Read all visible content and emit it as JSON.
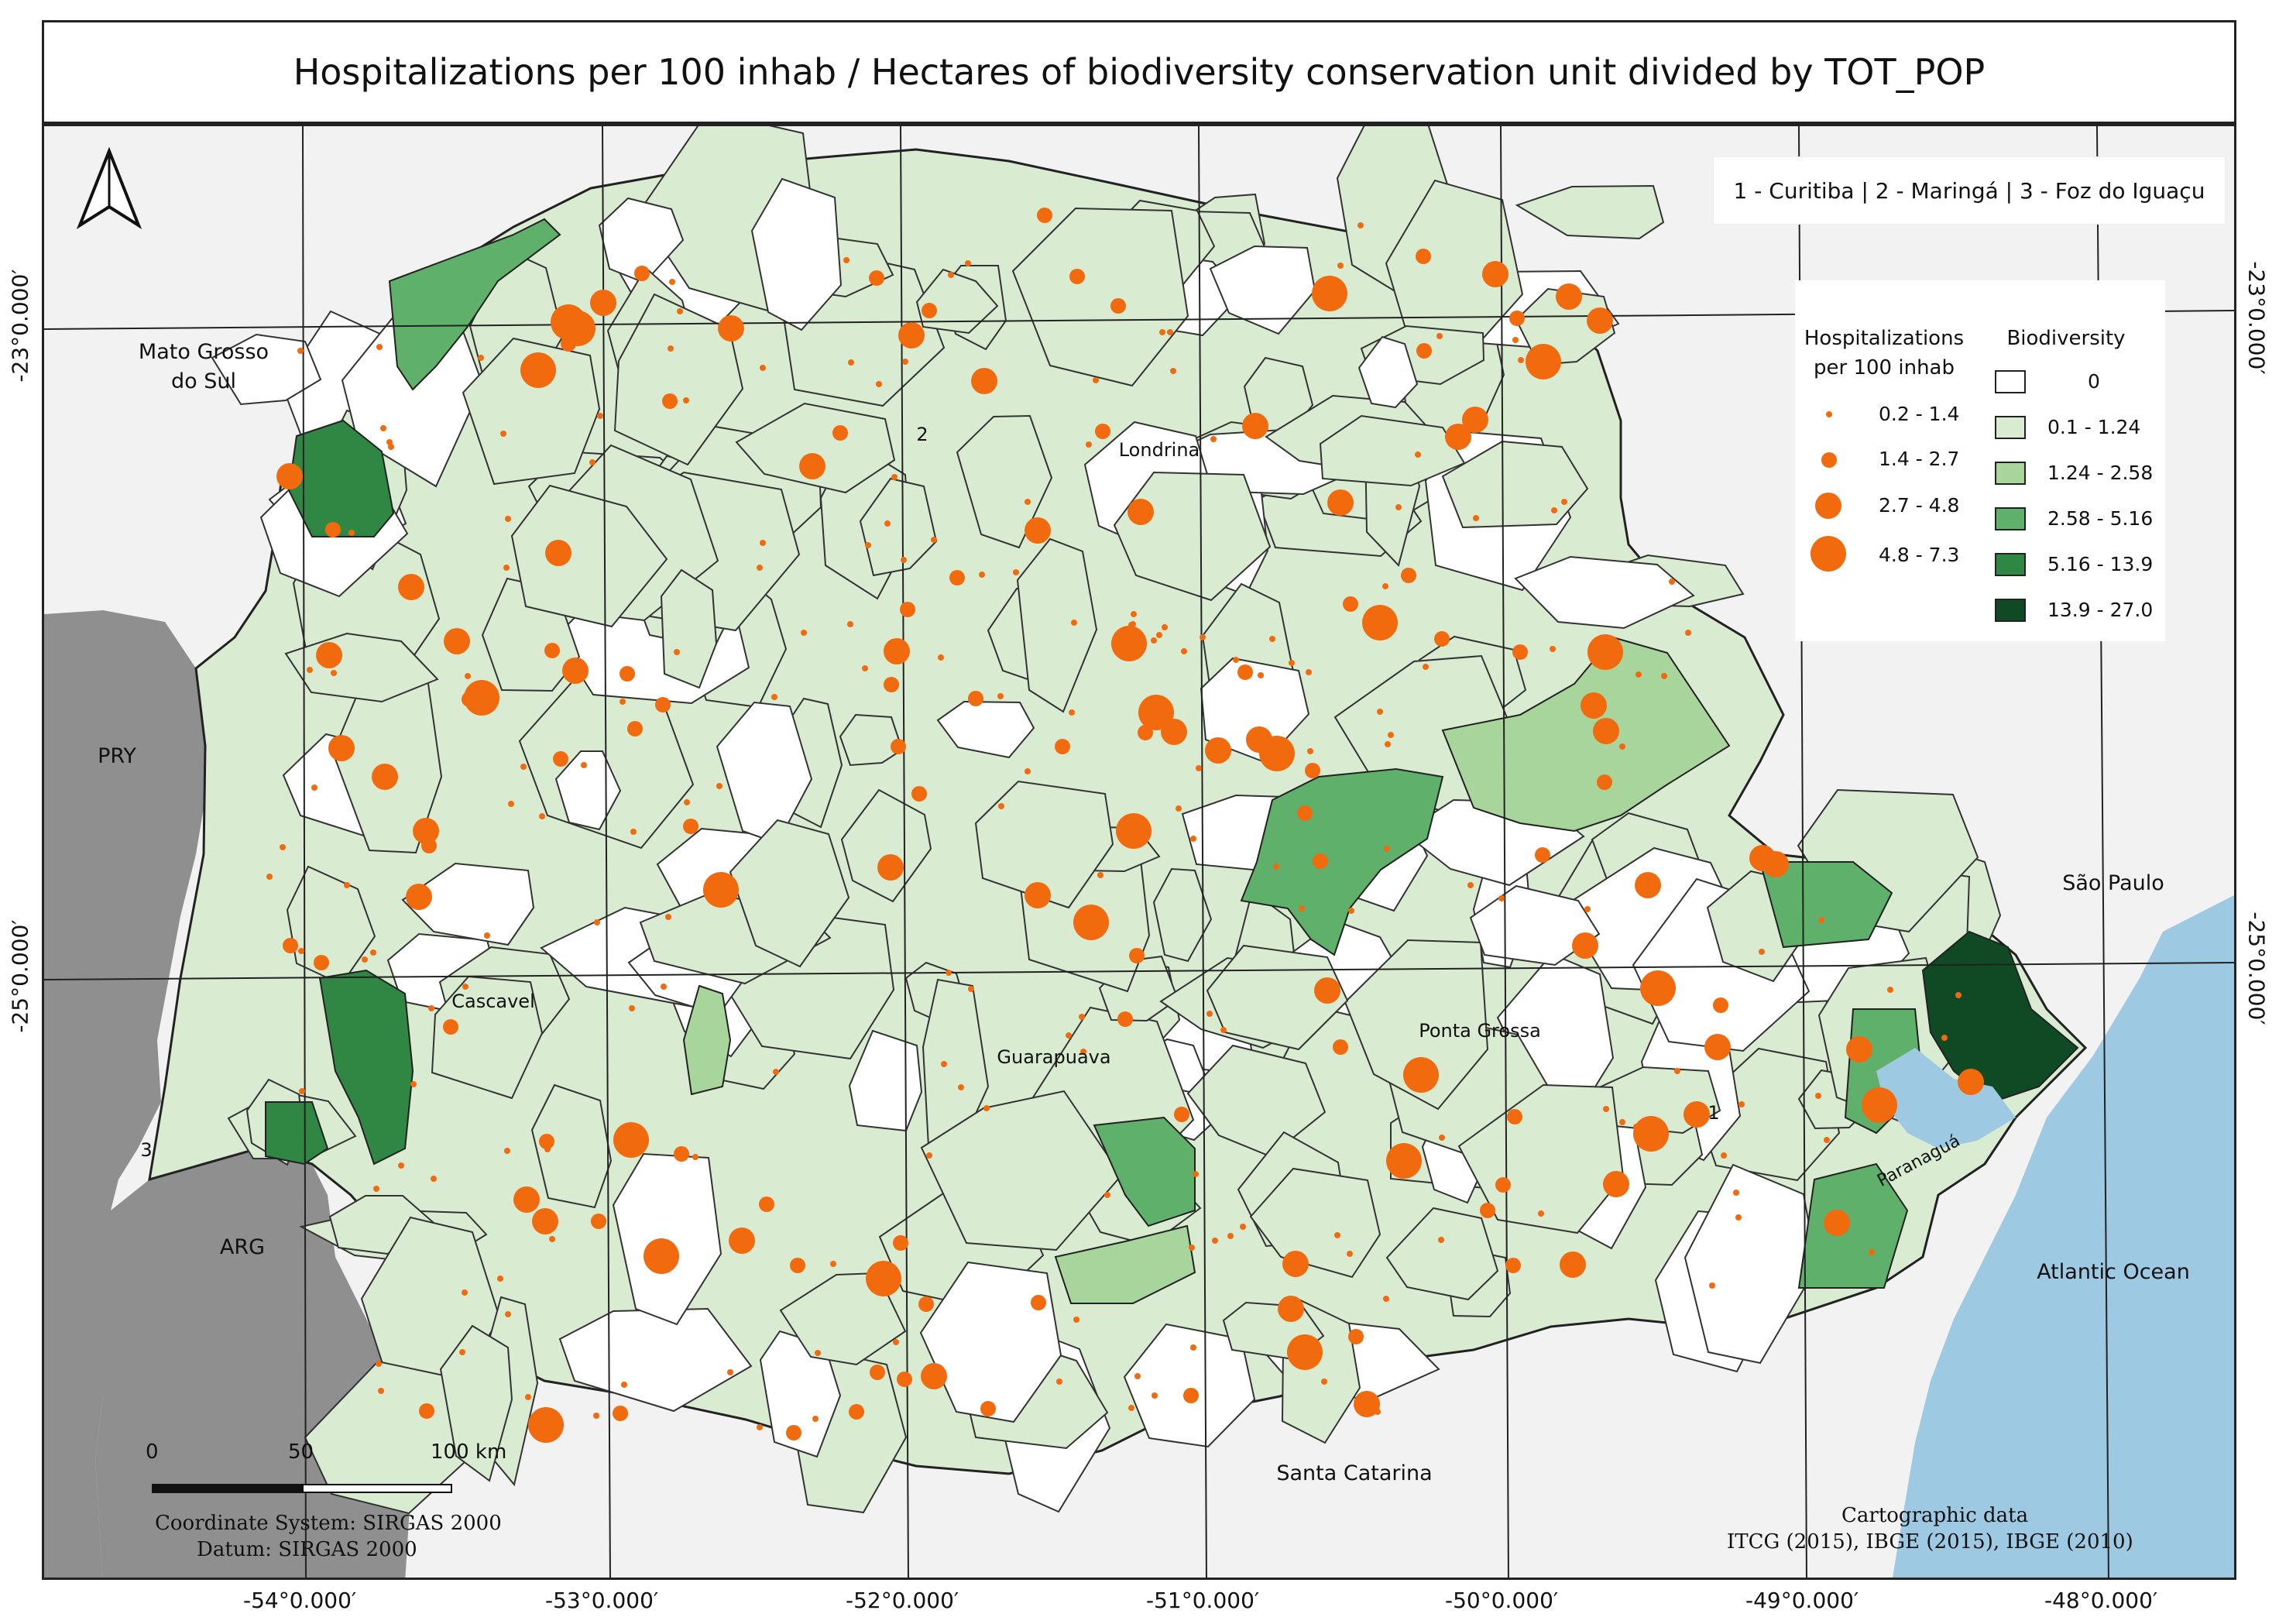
{
  "title": "Hospitalizations per 100 inhab / Hectares of biodiversity conservation unit divided by TOT_POP",
  "city_key": "1 - Curitiba | 2 - Maringá | 3 - Foz do Iguaçu",
  "legend": {
    "hosp_title_line1": "Hospitalizations",
    "hosp_title_line2": "per 100 inhab",
    "hosp_classes": [
      "0.2 - 1.4",
      "1.4 - 2.7",
      "2.7 - 4.8",
      "4.8 - 7.3"
    ],
    "hosp_color": "#f26a0e",
    "bio_title": "Biodiversity",
    "bio_classes": [
      {
        "label": "0",
        "color": "#ffffff"
      },
      {
        "label": "0.1 - 1.24",
        "color": "#d9ecd2"
      },
      {
        "label": "1.24 - 2.58",
        "color": "#a8d59c"
      },
      {
        "label": "2.58 - 5.16",
        "color": "#5fb06a"
      },
      {
        "label": "5.16 - 13.9",
        "color": "#2f8743"
      },
      {
        "label": "13.9 - 27.0",
        "color": "#0f4a25"
      }
    ]
  },
  "places": {
    "ms": [
      "Mato Grosso",
      "do Sul"
    ],
    "pry": "PRY",
    "arg": "ARG",
    "sp": "São Paulo",
    "sc": "Santa Catarina",
    "ocean": "Atlantic Ocean",
    "londrina": "Londrina",
    "cascavel": "Cascavel",
    "guarapuava": "Guarapuava",
    "ponta_grossa": "Ponta Grossa",
    "paranagua": "Paranaguá",
    "n1": "1",
    "n2": "2",
    "n3": "3"
  },
  "coords": {
    "lon": [
      "-54°0.000′",
      "-53°0.000′",
      "-52°0.000′",
      "-51°0.000′",
      "-50°0.000′",
      "-49°0.000′",
      "-48°0.000′"
    ],
    "lat_top": "-23°0.000′",
    "lat_bottom": "-25°0.000′"
  },
  "scale": {
    "l0": "0",
    "l50": "50",
    "l100": "100 km"
  },
  "footer": {
    "crs": "Coordinate System: SIRGAS 2000",
    "datum": "Datum: SIRGAS 2000",
    "carto_title": "Cartographic data",
    "carto_sources": "ITCG (2015), IBGE (2015), IBGE (2010)"
  },
  "colors": {
    "background": "#f2f2f3",
    "neighbor_country": "#8f8f8f",
    "ocean": "#9ec9e3",
    "grid": "#222222"
  }
}
